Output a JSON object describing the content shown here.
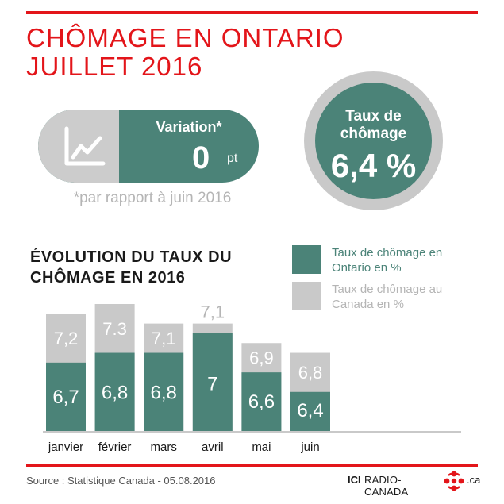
{
  "title": {
    "line1": "CHÔMAGE EN ONTARIO",
    "line2": "JUILLET 2016"
  },
  "variation": {
    "label": "Variation*",
    "value": "0",
    "unit": "pt",
    "note": "*par rapport à juin 2016",
    "icon": "line-chart-icon"
  },
  "taux": {
    "label_line1": "Taux de",
    "label_line2": "chômage",
    "value": "6,4 %"
  },
  "chart_title": {
    "line1": "ÉVOLUTION DU TAUX DU",
    "line2": "CHÔMAGE EN 2016"
  },
  "legend": {
    "ontario": {
      "line1": "Taux de chômage en",
      "line2": "Ontario en %"
    },
    "canada": {
      "line1": "Taux de chômage au",
      "line2": "Canada en %"
    }
  },
  "colors": {
    "accent": "#e3151a",
    "ontario": "#4b8378",
    "canada": "#c9c9c9"
  },
  "chart_data": {
    "type": "bar",
    "categories": [
      "janvier",
      "février",
      "mars",
      "avril",
      "mai",
      "juin"
    ],
    "series": [
      {
        "name": "Taux de chômage en Ontario en %",
        "values": [
          6.7,
          6.8,
          6.8,
          7.0,
          6.6,
          6.4
        ],
        "labels": [
          "6,7",
          "6,8",
          "6,8",
          "7",
          "6,6",
          "6,4"
        ]
      },
      {
        "name": "Taux de chômage au Canada en %",
        "values": [
          7.2,
          7.3,
          7.1,
          7.1,
          6.9,
          6.8
        ],
        "labels": [
          "7,2",
          "7.3",
          "7,1",
          "7,1",
          "6,9",
          "6,8"
        ]
      }
    ],
    "overlay": true,
    "ylim": [
      0,
      7.3
    ]
  },
  "footer": {
    "source": "Source : Statistique Canada - 05.08.2016",
    "brand_ici": "ICI",
    "brand_name": "RADIO-CANADA",
    "brand_ca": ".ca",
    "logo_icon": "radio-canada-logo-icon"
  }
}
